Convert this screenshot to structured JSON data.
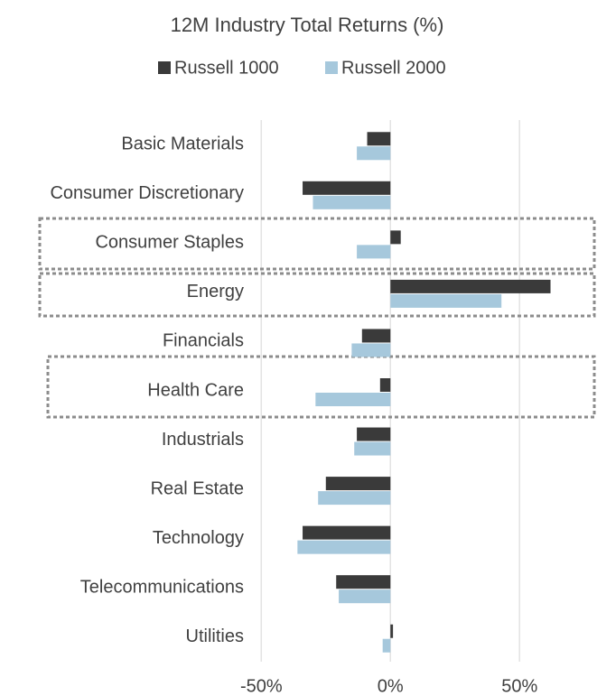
{
  "chart_data": {
    "type": "bar",
    "orientation": "horizontal",
    "title": "12M Industry Total Returns (%)",
    "categories": [
      "Basic Materials",
      "Consumer Discretionary",
      "Consumer Staples",
      "Energy",
      "Financials",
      "Health Care",
      "Industrials",
      "Real Estate",
      "Technology",
      "Telecommunications",
      "Utilities"
    ],
    "series": [
      {
        "name": "Russell 1000",
        "color": "#3a3a3a",
        "values": [
          -9,
          -34,
          4,
          62,
          -11,
          -4,
          -13,
          -25,
          -34,
          -21,
          1
        ]
      },
      {
        "name": "Russell 2000",
        "color": "#a6c8dc",
        "values": [
          -13,
          -30,
          -13,
          43,
          -15,
          -29,
          -14,
          -28,
          -36,
          -20,
          -3
        ]
      }
    ],
    "xlim": [
      -55,
      80
    ],
    "xticks": [
      {
        "value": -50,
        "label": "-50%"
      },
      {
        "value": 0,
        "label": "0%"
      },
      {
        "value": 50,
        "label": "50%"
      }
    ],
    "grid": true,
    "legend": "top"
  }
}
